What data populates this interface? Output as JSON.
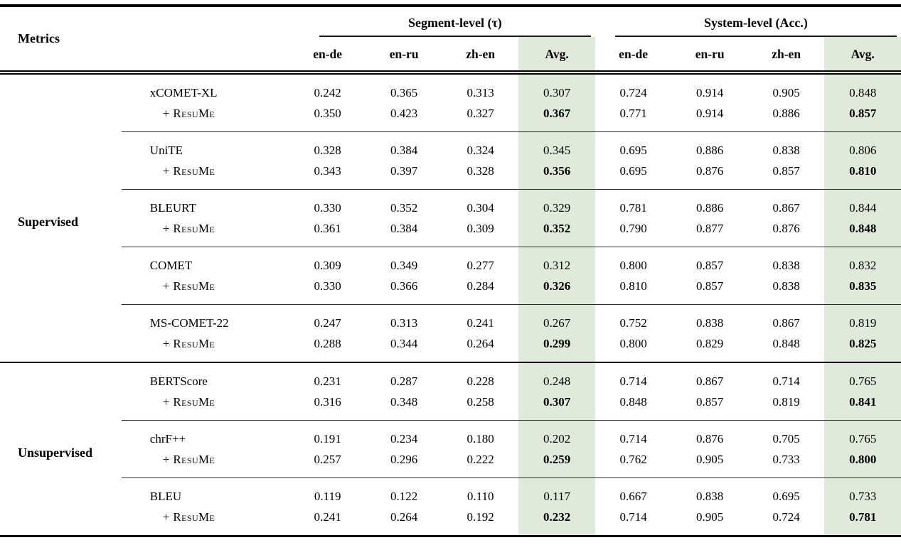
{
  "table": {
    "corner_header": "Metrics",
    "col_groups": [
      {
        "label": "Segment-level (τ)",
        "columns": [
          "en-de",
          "en-ru",
          "zh-en",
          "Avg."
        ]
      },
      {
        "label": "System-level (Acc.)",
        "columns": [
          "en-de",
          "en-ru",
          "zh-en",
          "Avg."
        ]
      }
    ],
    "resume_row_label": "+ ResuMe",
    "colors": {
      "avg_highlight": "#dfeadb"
    },
    "sections": [
      {
        "label": "Supervised",
        "groups": [
          {
            "metric": "xCOMET-XL",
            "base": [
              "0.242",
              "0.365",
              "0.313",
              "0.307",
              "0.724",
              "0.914",
              "0.905",
              "0.848"
            ],
            "resume": [
              "0.350",
              "0.423",
              "0.327",
              "0.367",
              "0.771",
              "0.914",
              "0.886",
              "0.857"
            ]
          },
          {
            "metric": "UniTE",
            "base": [
              "0.328",
              "0.384",
              "0.324",
              "0.345",
              "0.695",
              "0.886",
              "0.838",
              "0.806"
            ],
            "resume": [
              "0.343",
              "0.397",
              "0.328",
              "0.356",
              "0.695",
              "0.876",
              "0.857",
              "0.810"
            ]
          },
          {
            "metric": "BLEURT",
            "base": [
              "0.330",
              "0.352",
              "0.304",
              "0.329",
              "0.781",
              "0.886",
              "0.867",
              "0.844"
            ],
            "resume": [
              "0.361",
              "0.384",
              "0.309",
              "0.352",
              "0.790",
              "0.877",
              "0.876",
              "0.848"
            ]
          },
          {
            "metric": "COMET",
            "base": [
              "0.309",
              "0.349",
              "0.277",
              "0.312",
              "0.800",
              "0.857",
              "0.838",
              "0.832"
            ],
            "resume": [
              "0.330",
              "0.366",
              "0.284",
              "0.326",
              "0.810",
              "0.857",
              "0.838",
              "0.835"
            ]
          },
          {
            "metric": "MS-COMET-22",
            "base": [
              "0.247",
              "0.313",
              "0.241",
              "0.267",
              "0.752",
              "0.838",
              "0.867",
              "0.819"
            ],
            "resume": [
              "0.288",
              "0.344",
              "0.264",
              "0.299",
              "0.800",
              "0.829",
              "0.848",
              "0.825"
            ]
          }
        ]
      },
      {
        "label": "Unsupervised",
        "groups": [
          {
            "metric": "BERTScore",
            "base": [
              "0.231",
              "0.287",
              "0.228",
              "0.248",
              "0.714",
              "0.867",
              "0.714",
              "0.765"
            ],
            "resume": [
              "0.316",
              "0.348",
              "0.258",
              "0.307",
              "0.848",
              "0.857",
              "0.819",
              "0.841"
            ]
          },
          {
            "metric": "chrF++",
            "base": [
              "0.191",
              "0.234",
              "0.180",
              "0.202",
              "0.714",
              "0.876",
              "0.705",
              "0.765"
            ],
            "resume": [
              "0.257",
              "0.296",
              "0.222",
              "0.259",
              "0.762",
              "0.905",
              "0.733",
              "0.800"
            ]
          },
          {
            "metric": "BLEU",
            "base": [
              "0.119",
              "0.122",
              "0.110",
              "0.117",
              "0.667",
              "0.838",
              "0.695",
              "0.733"
            ],
            "resume": [
              "0.241",
              "0.264",
              "0.192",
              "0.232",
              "0.714",
              "0.905",
              "0.724",
              "0.781"
            ]
          }
        ]
      }
    ]
  }
}
